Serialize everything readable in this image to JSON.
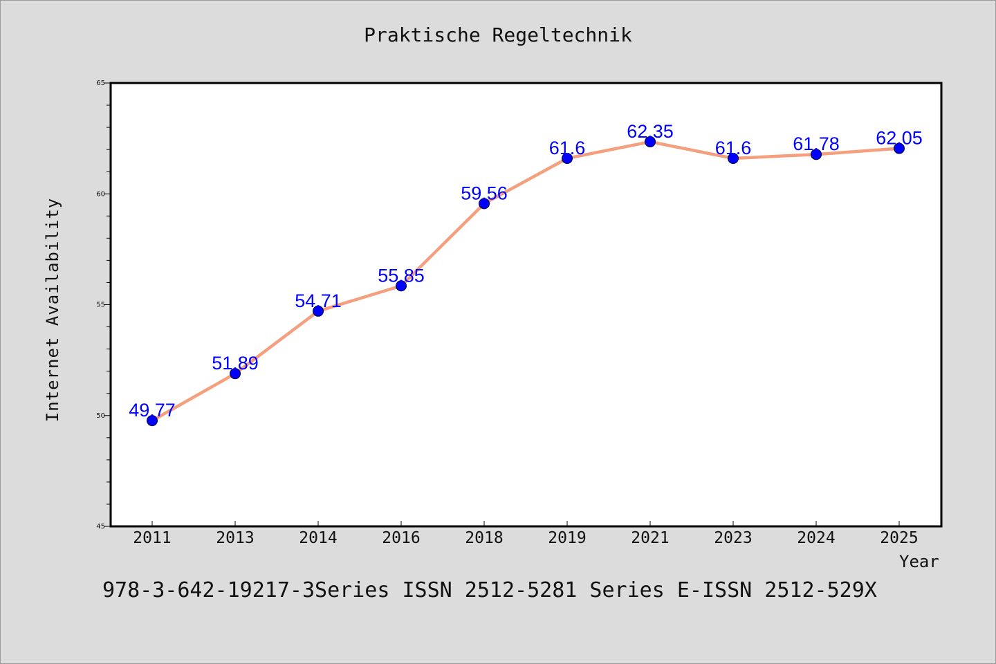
{
  "chart_data": {
    "type": "line",
    "title": "Praktische Regeltechnik",
    "xlabel": "Year",
    "ylabel": "Internet Availability",
    "categories": [
      "2011",
      "2013",
      "2014",
      "2016",
      "2018",
      "2019",
      "2021",
      "2023",
      "2024",
      "2025"
    ],
    "series": [
      {
        "values": [
          49.77,
          51.89,
          54.71,
          55.85,
          59.56,
          61.6,
          62.35,
          61.6,
          61.78,
          62.05
        ]
      }
    ],
    "data_labels": [
      "49.77",
      "51.89",
      "54.71",
      "55.85",
      "59.56",
      "61.6",
      "62.35",
      "61.6",
      "61.78",
      "62.05"
    ],
    "ylim": [
      45,
      65
    ],
    "yticks": [
      45,
      50,
      55,
      60,
      65
    ],
    "grid": false,
    "colors": {
      "line": "#f4a07e",
      "marker": "#0000ff",
      "data_label": "#0000ff",
      "background": "#dcdcdc",
      "plot_background": "#ffffff"
    }
  },
  "footer_text": "978-3-642-19217-3Series ISSN 2512-5281 Series E-ISSN 2512-529X"
}
